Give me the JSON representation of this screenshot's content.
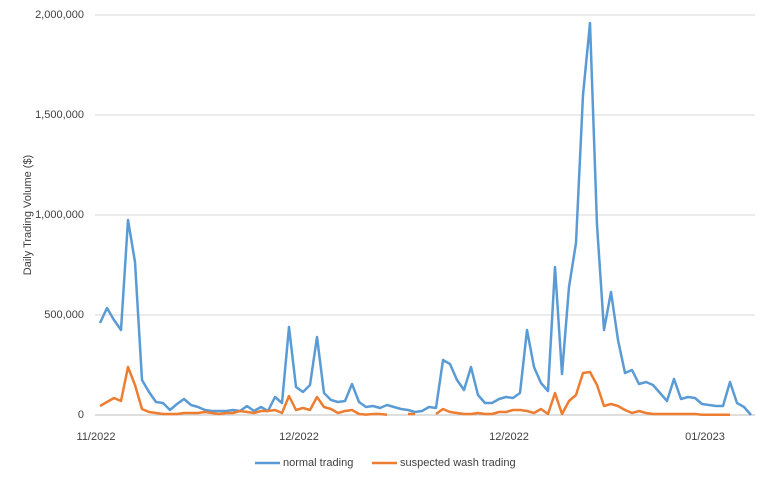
{
  "chart_data": {
    "type": "line",
    "y_label": "Daily Trading Volume ($)",
    "categories": [
      "11/2022",
      null,
      null,
      null,
      null,
      null,
      null,
      null,
      null,
      null,
      null,
      null,
      null,
      null,
      null,
      null,
      null,
      null,
      null,
      null,
      null,
      null,
      null,
      null,
      null,
      null,
      null,
      null,
      null,
      "12/2022",
      null,
      null,
      null,
      null,
      null,
      null,
      null,
      null,
      null,
      null,
      null,
      null,
      null,
      null,
      null,
      null,
      null,
      null,
      null,
      null,
      null,
      null,
      null,
      null,
      null,
      null,
      null,
      null,
      null,
      "12/2022",
      null,
      null,
      null,
      null,
      null,
      null,
      null,
      null,
      null,
      null,
      null,
      null,
      null,
      null,
      null,
      null,
      null,
      null,
      null,
      null,
      null,
      null,
      null,
      null,
      null,
      null,
      null,
      "01/2023",
      null,
      null,
      null,
      null,
      null,
      null
    ],
    "series": [
      {
        "name": "normal trading",
        "color": "#5b9bd5",
        "values": [
          460000,
          535000,
          475000,
          425000,
          975000,
          765000,
          175000,
          115000,
          65000,
          60000,
          25000,
          55000,
          80000,
          50000,
          40000,
          25000,
          20000,
          20000,
          20000,
          25000,
          20000,
          45000,
          20000,
          40000,
          20000,
          90000,
          60000,
          440000,
          140000,
          115000,
          150000,
          390000,
          110000,
          75000,
          65000,
          70000,
          155000,
          65000,
          40000,
          45000,
          35000,
          50000,
          40000,
          30000,
          25000,
          15000,
          20000,
          40000,
          35000,
          275000,
          255000,
          175000,
          125000,
          240000,
          100000,
          60000,
          60000,
          80000,
          90000,
          85000,
          110000,
          425000,
          240000,
          160000,
          120000,
          740000,
          205000,
          640000,
          860000,
          1600000,
          1960000,
          950000,
          425000,
          615000,
          375000,
          210000,
          225000,
          155000,
          165000,
          150000,
          110000,
          70000,
          180000,
          80000,
          90000,
          85000,
          55000,
          50000,
          45000,
          45000,
          165000,
          60000,
          40000,
          0
        ]
      },
      {
        "name": "suspected wash trading",
        "color": "#ed7d31",
        "values": [
          45000,
          65000,
          85000,
          70000,
          240000,
          150000,
          30000,
          15000,
          10000,
          5000,
          5000,
          5000,
          10000,
          10000,
          10000,
          15000,
          10000,
          5000,
          10000,
          10000,
          20000,
          15000,
          10000,
          20000,
          20000,
          25000,
          10000,
          95000,
          25000,
          35000,
          25000,
          90000,
          40000,
          30000,
          10000,
          20000,
          25000,
          5000,
          2000,
          5000,
          5000,
          1000,
          null,
          null,
          5000,
          5000,
          null,
          null,
          5000,
          30000,
          15000,
          10000,
          5000,
          5000,
          10000,
          5000,
          5000,
          15000,
          15000,
          25000,
          25000,
          20000,
          10000,
          30000,
          5000,
          110000,
          5000,
          70000,
          100000,
          210000,
          215000,
          150000,
          45000,
          55000,
          45000,
          25000,
          10000,
          20000,
          10000,
          5000,
          5000,
          5000,
          5000,
          5000,
          5000,
          5000,
          1000,
          1000,
          1000,
          1000,
          1000,
          null,
          null,
          null
        ]
      }
    ],
    "ylim": [
      0,
      2000000
    ],
    "yticks": [
      0,
      {
        "value": 500000,
        "label": "500,000"
      },
      {
        "value": 1000000,
        "label": "1,000,000"
      },
      {
        "value": 1500000,
        "label": "1,500,000"
      },
      {
        "value": 2000000,
        "label": "2,000,000"
      }
    ],
    "grid": true,
    "legend": "bottom"
  }
}
